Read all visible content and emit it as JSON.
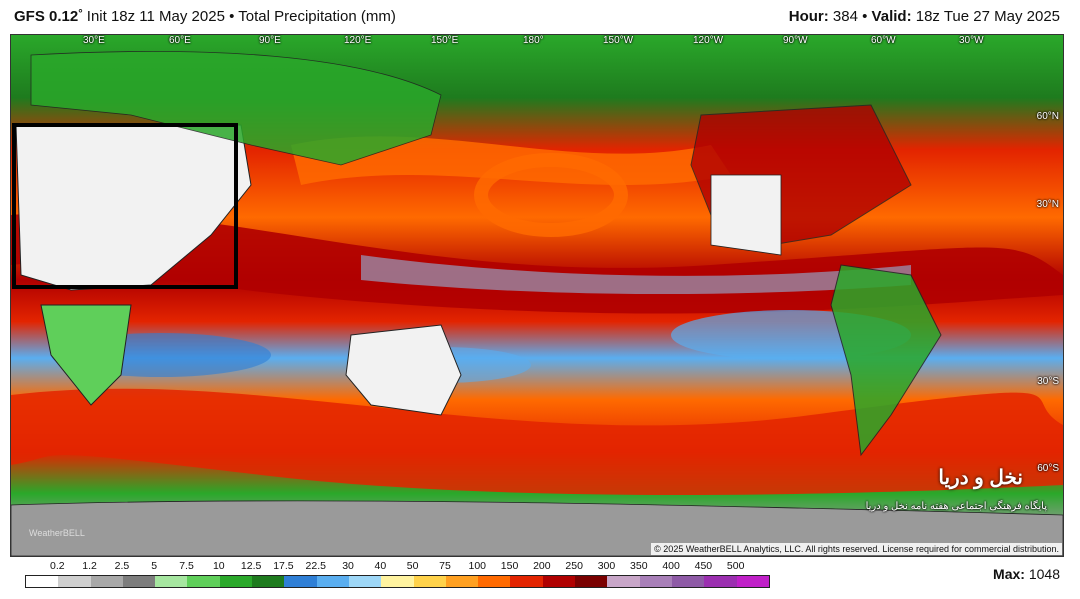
{
  "header": {
    "model": "GFS 0.12",
    "degree_symbol": "°",
    "init_text": "Init 18z 11 May 2025",
    "separator": "•",
    "field": "Total Precipitation (mm)",
    "hour_label": "Hour:",
    "hour_value": "384",
    "valid_label": "Valid:",
    "valid_value": "18z Tue 27 May 2025"
  },
  "map": {
    "longitude_labels": [
      "30°E",
      "60°E",
      "90°E",
      "120°E",
      "150°E",
      "180°",
      "150°W",
      "120°W",
      "90°W",
      "60°W",
      "30°W"
    ],
    "latitude_labels": [
      "60°N",
      "30°N",
      "30°S",
      "60°S"
    ],
    "copyright": "© 2025 WeatherBELL Analytics, LLC. All rights reserved. License required for commercial distribution.",
    "watermark": "WeatherBELL",
    "overlay_caption_fa": "پایگاه فرهنگی اجتماعی هفته نامه نخل و دریا",
    "overlay_logo_fa": "نخل و دریا",
    "highlight_box": "black rectangle over Middle East / North Africa"
  },
  "legend": {
    "labels": [
      "0.2",
      "1.2",
      "2.5",
      "5",
      "7.5",
      "10",
      "12.5",
      "17.5",
      "22.5",
      "30",
      "40",
      "50",
      "75",
      "100",
      "150",
      "200",
      "250",
      "300",
      "350",
      "400",
      "450",
      "500"
    ],
    "colors": [
      "#ffffff",
      "#cfcfcf",
      "#a8a8a8",
      "#7d7d7d",
      "#a6e6a0",
      "#5fcf5a",
      "#2aa82a",
      "#1e7b1e",
      "#2f7fd6",
      "#5aaef0",
      "#9ed7f7",
      "#fff3a0",
      "#ffd24a",
      "#ffa021",
      "#ff6a00",
      "#e32400",
      "#b00000",
      "#7a0000",
      "#c8a6c8",
      "#a87fb8",
      "#8e5aa6",
      "#9b2fb0",
      "#c020c8"
    ],
    "max_label": "Max:",
    "max_value": "1048"
  }
}
